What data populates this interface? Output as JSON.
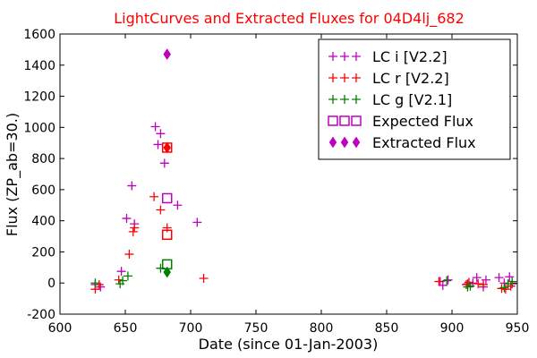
{
  "chart_data": {
    "type": "scatter",
    "title": "LightCurves and Extracted Fluxes for 04D4lj_682",
    "xlabel": "Date (since 01-Jan-2003)",
    "ylabel": "Flux (ZP_ab=30.)",
    "xlim": [
      600,
      950
    ],
    "ylim": [
      -200,
      1600
    ],
    "xticks": [
      600,
      650,
      700,
      750,
      800,
      850,
      900,
      950
    ],
    "yticks": [
      -200,
      0,
      200,
      400,
      600,
      800,
      1000,
      1200,
      1400,
      1600
    ],
    "grid": false,
    "legend_position": "top-right",
    "series": [
      {
        "name": "LC i [V2.2]",
        "marker": "plus",
        "color": "#bf00bf",
        "points": [
          [
            627,
            -10
          ],
          [
            631,
            -25
          ],
          [
            647,
            75
          ],
          [
            651,
            415
          ],
          [
            655,
            625
          ],
          [
            657,
            380
          ],
          [
            673,
            1005
          ],
          [
            675,
            890
          ],
          [
            677,
            960
          ],
          [
            680,
            770
          ],
          [
            690,
            500
          ],
          [
            705,
            390
          ],
          [
            891,
            10
          ],
          [
            893,
            -15
          ],
          [
            897,
            20
          ],
          [
            912,
            -5
          ],
          [
            916,
            0
          ],
          [
            919,
            35
          ],
          [
            924,
            -25
          ],
          [
            926,
            20
          ],
          [
            936,
            35
          ],
          [
            940,
            0
          ],
          [
            944,
            40
          ],
          [
            946,
            -5
          ]
        ]
      },
      {
        "name": "LC r [V2.2]",
        "marker": "plus",
        "color": "#ff0000",
        "points": [
          [
            627,
            -40
          ],
          [
            630,
            -10
          ],
          [
            645,
            20
          ],
          [
            653,
            185
          ],
          [
            656,
            330
          ],
          [
            657,
            355
          ],
          [
            672,
            555
          ],
          [
            677,
            470
          ],
          [
            682,
            355
          ],
          [
            710,
            30
          ],
          [
            890,
            10
          ],
          [
            911,
            -10
          ],
          [
            913,
            5
          ],
          [
            920,
            -5
          ],
          [
            924,
            -10
          ],
          [
            938,
            -35
          ],
          [
            941,
            -40
          ],
          [
            945,
            -20
          ]
        ]
      },
      {
        "name": "LC g [V2.1]",
        "marker": "plus",
        "color": "#008000",
        "points": [
          [
            627,
            0
          ],
          [
            646,
            -5
          ],
          [
            648,
            15
          ],
          [
            652,
            45
          ],
          [
            677,
            95
          ],
          [
            896,
            15
          ],
          [
            912,
            -25
          ],
          [
            914,
            -20
          ],
          [
            940,
            -30
          ],
          [
            943,
            -5
          ],
          [
            946,
            10
          ]
        ]
      },
      {
        "name": "Expected Flux",
        "marker": "open-square",
        "color": "#bf00bf",
        "points": [
          [
            682,
            545
          ],
          [
            682,
            870
          ],
          [
            682,
            310
          ],
          [
            682,
            120
          ]
        ]
      },
      {
        "name": "Extracted Flux",
        "marker": "diamond",
        "color": "#bf00bf",
        "points": [
          [
            682,
            1470
          ],
          [
            682,
            870
          ],
          [
            682,
            70
          ]
        ]
      }
    ],
    "expected_flux_colors": [
      "#bf00bf",
      "#ff0000",
      "#ff0000",
      "#008000"
    ],
    "extracted_flux_colors": [
      "#bf00bf",
      "#ff0000",
      "#008000"
    ]
  }
}
